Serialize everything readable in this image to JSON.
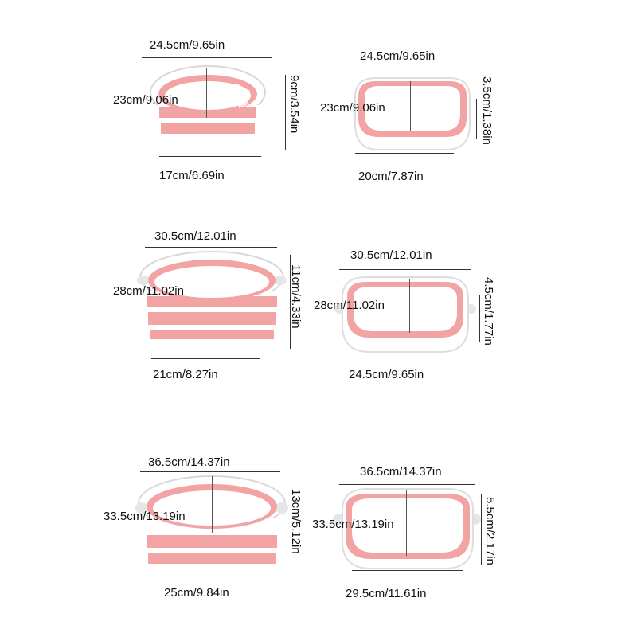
{
  "colors": {
    "pink": "#f2a3a3",
    "pink_dark": "#e8878a",
    "white": "#ffffff",
    "rim_shadow": "#d9d9d9",
    "line": "#333333"
  },
  "panels": [
    {
      "id": "small-open",
      "state": "expanded",
      "top_width": "24.5cm/9.65in",
      "inner_depth": "23cm/9.06in",
      "height": "9cm/3.54in",
      "bottom_width": "17cm/6.69in"
    },
    {
      "id": "small-folded",
      "state": "collapsed",
      "top_width": "24.5cm/9.65in",
      "inner_depth": "23cm/9.06in",
      "height": "3.5cm/1.38in",
      "bottom_width": "20cm/7.87in"
    },
    {
      "id": "medium-open",
      "state": "expanded",
      "top_width": "30.5cm/12.01in",
      "inner_depth": "28cm/11.02in",
      "height": "11cm/4.33in",
      "bottom_width": "21cm/8.27in"
    },
    {
      "id": "medium-folded",
      "state": "collapsed",
      "top_width": "30.5cm/12.01in",
      "inner_depth": "28cm/11.02in",
      "height": "4.5cm/1.77in",
      "bottom_width": "24.5cm/9.65in"
    },
    {
      "id": "large-open",
      "state": "expanded",
      "top_width": "36.5cm/14.37in",
      "inner_depth": "33.5cm/13.19in",
      "height": "13cm/5.12in",
      "bottom_width": "25cm/9.84in"
    },
    {
      "id": "large-folded",
      "state": "collapsed",
      "top_width": "36.5cm/14.37in",
      "inner_depth": "33.5cm/13.19in",
      "height": "5.5cm/2.17in",
      "bottom_width": "29.5cm/11.61in"
    }
  ]
}
